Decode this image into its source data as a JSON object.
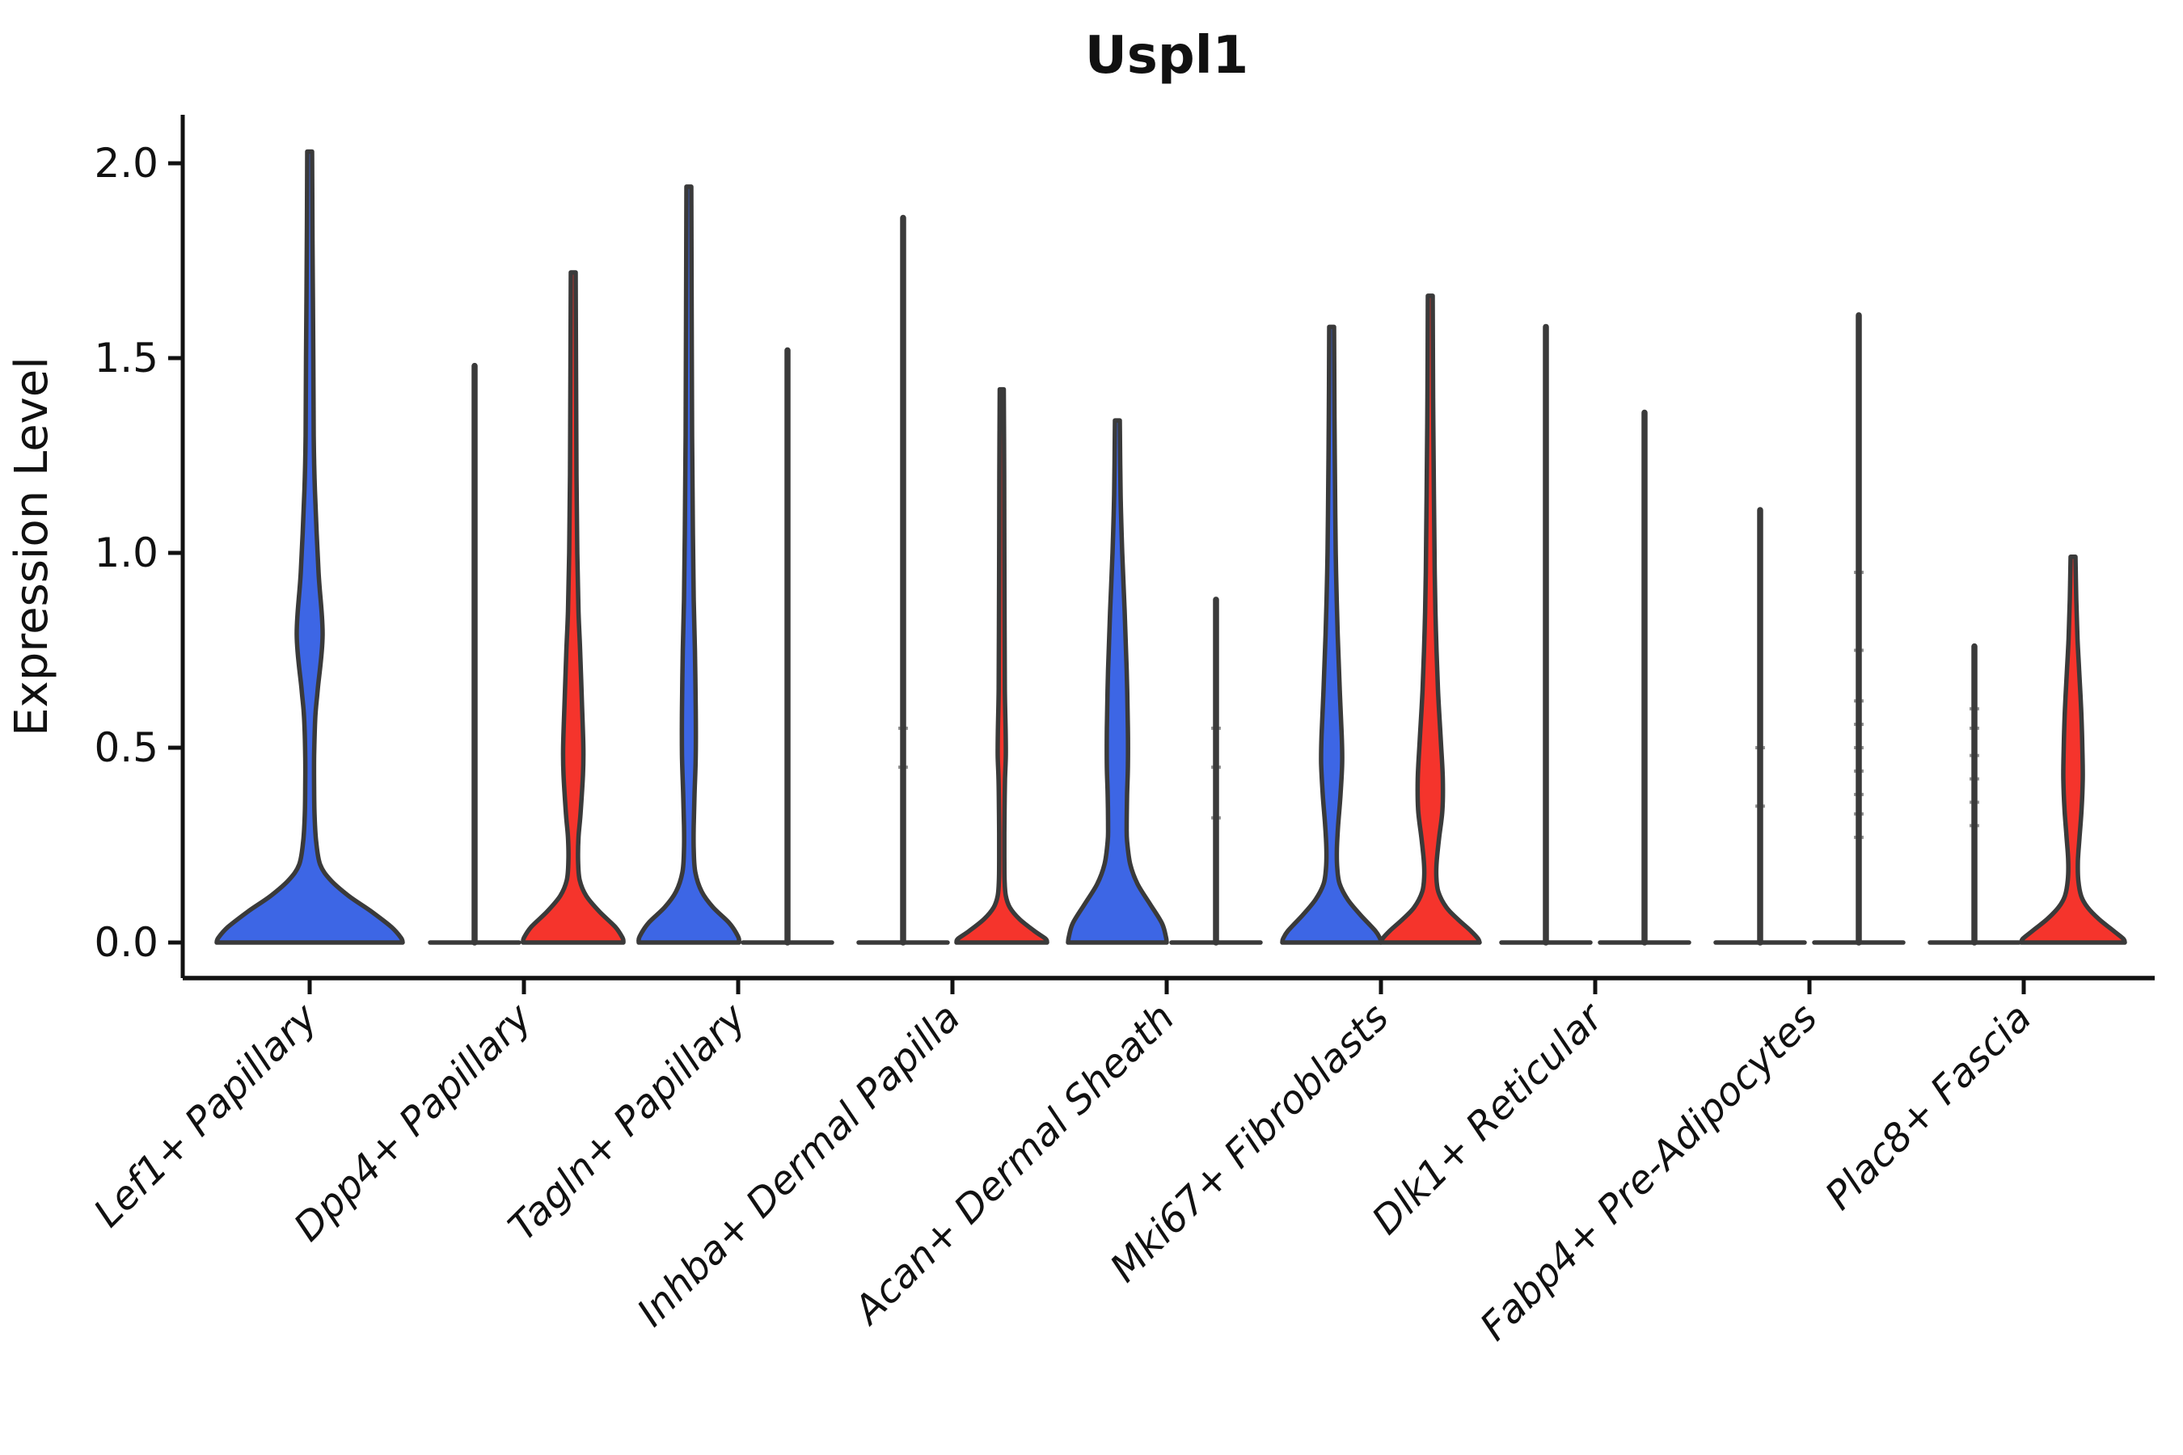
{
  "chart_data": {
    "type": "violin",
    "title": "Uspl1",
    "ylabel": "Expression Level",
    "xlabel": "",
    "yticks": [
      0.0,
      0.5,
      1.0,
      1.5,
      2.0
    ],
    "ylim": [
      -0.09,
      2.12
    ],
    "grid": false,
    "legend": "none",
    "categories": [
      "Lef1+ Papillary",
      "Dpp4+ Papillary",
      "Tagln+ Papillary",
      "Inhba+ Dermal Papilla",
      "Acan+ Dermal Sheath",
      "Mki67+ Fibroblasts",
      "Dlk1+ Reticular",
      "Fabp4+ Pre-Adipocytes",
      "Plac8+ Fascia"
    ],
    "colors": {
      "blue": "#3D66E5",
      "red": "#F5342C",
      "outline": "#3A3A3A",
      "axis": "#111111",
      "background": "#FFFFFF"
    },
    "groups": [
      {
        "category": "Lef1+ Papillary",
        "violins": [
          {
            "position": "center",
            "color": "blue",
            "kind": "shaped",
            "max_expression": 2.03,
            "profile": [
              [
                2.03,
                3
              ],
              [
                1.8,
                3.5
              ],
              [
                1.5,
                4.5
              ],
              [
                1.3,
                5
              ],
              [
                1.16,
                6.5
              ],
              [
                0.95,
                11
              ],
              [
                0.79,
                16
              ],
              [
                0.65,
                10
              ],
              [
                0.58,
                7
              ],
              [
                0.48,
                5.5
              ],
              [
                0.4,
                5.5
              ],
              [
                0.33,
                6
              ],
              [
                0.26,
                8
              ],
              [
                0.2,
                13
              ],
              [
                0.16,
                26
              ],
              [
                0.12,
                48
              ],
              [
                0.08,
                76
              ],
              [
                0.04,
                101
              ],
              [
                0.012,
                113
              ],
              [
                0,
                115
              ]
            ]
          }
        ]
      },
      {
        "category": "Dpp4+ Papillary",
        "violins": [
          {
            "position": "left",
            "color": "blue",
            "kind": "line",
            "max_expression": 1.48,
            "base_halfwidth": 55,
            "beads": []
          },
          {
            "position": "right",
            "color": "red",
            "kind": "shaped",
            "max_expression": 1.72,
            "profile": [
              [
                1.72,
                3
              ],
              [
                1.45,
                3.5
              ],
              [
                1.2,
                4
              ],
              [
                1.0,
                5
              ],
              [
                0.85,
                6.5
              ],
              [
                0.75,
                8.5
              ],
              [
                0.6,
                11
              ],
              [
                0.5,
                12.5
              ],
              [
                0.43,
                12
              ],
              [
                0.33,
                9
              ],
              [
                0.27,
                6.5
              ],
              [
                0.21,
                6
              ],
              [
                0.16,
                8
              ],
              [
                0.12,
                16
              ],
              [
                0.08,
                32
              ],
              [
                0.04,
                52
              ],
              [
                0.012,
                61
              ],
              [
                0,
                62
              ]
            ]
          }
        ]
      },
      {
        "category": "Tagln+ Papillary",
        "violins": [
          {
            "position": "left",
            "color": "blue",
            "kind": "shaped",
            "max_expression": 1.94,
            "profile": [
              [
                1.94,
                3
              ],
              [
                1.6,
                3.5
              ],
              [
                1.3,
                4
              ],
              [
                1.05,
                5
              ],
              [
                0.88,
                6
              ],
              [
                0.75,
                7.5
              ],
              [
                0.6,
                8.5
              ],
              [
                0.48,
                8.5
              ],
              [
                0.38,
                7
              ],
              [
                0.3,
                6
              ],
              [
                0.24,
                6
              ],
              [
                0.18,
                8
              ],
              [
                0.13,
                16
              ],
              [
                0.09,
                30
              ],
              [
                0.05,
                50
              ],
              [
                0.015,
                61
              ],
              [
                0,
                62
              ]
            ]
          },
          {
            "position": "right",
            "color": "red",
            "kind": "line",
            "max_expression": 1.52,
            "base_halfwidth": 55,
            "beads": []
          }
        ]
      },
      {
        "category": "Inhba+ Dermal Papilla",
        "violins": [
          {
            "position": "left",
            "color": "blue",
            "kind": "line",
            "max_expression": 1.86,
            "base_halfwidth": 55,
            "beads": [
              0.45,
              0.55
            ]
          },
          {
            "position": "right",
            "color": "red",
            "kind": "shaped",
            "max_expression": 1.42,
            "profile": [
              [
                1.42,
                2.5
              ],
              [
                1.2,
                3
              ],
              [
                1.0,
                3.2
              ],
              [
                0.8,
                3.5
              ],
              [
                0.65,
                3.8
              ],
              [
                0.54,
                4.8
              ],
              [
                0.48,
                5
              ],
              [
                0.42,
                4
              ],
              [
                0.35,
                3.5
              ],
              [
                0.28,
                3.2
              ],
              [
                0.22,
                3.2
              ],
              [
                0.16,
                3.5
              ],
              [
                0.12,
                5
              ],
              [
                0.09,
                10
              ],
              [
                0.06,
                22
              ],
              [
                0.03,
                40
              ],
              [
                0.01,
                54
              ],
              [
                0,
                56
              ]
            ]
          }
        ]
      },
      {
        "category": "Acan+ Dermal Sheath",
        "violins": [
          {
            "position": "left",
            "color": "blue",
            "kind": "shaped",
            "max_expression": 1.34,
            "profile": [
              [
                1.34,
                3
              ],
              [
                1.15,
                4
              ],
              [
                1.0,
                6
              ],
              [
                0.85,
                9
              ],
              [
                0.7,
                11.5
              ],
              [
                0.55,
                13
              ],
              [
                0.45,
                13
              ],
              [
                0.38,
                12
              ],
              [
                0.3,
                11.5
              ],
              [
                0.26,
                12
              ],
              [
                0.2,
                16
              ],
              [
                0.15,
                25
              ],
              [
                0.1,
                40
              ],
              [
                0.05,
                55
              ],
              [
                0.015,
                60
              ],
              [
                0,
                61
              ]
            ]
          },
          {
            "position": "right",
            "color": "red",
            "kind": "line",
            "max_expression": 0.88,
            "base_halfwidth": 55,
            "beads": [
              0.32,
              0.45,
              0.55
            ]
          }
        ]
      },
      {
        "category": "Mki67+ Fibroblasts",
        "violins": [
          {
            "position": "left",
            "color": "blue",
            "kind": "shaped",
            "max_expression": 1.58,
            "profile": [
              [
                1.58,
                3
              ],
              [
                1.35,
                3.5
              ],
              [
                1.1,
                4.5
              ],
              [
                0.95,
                5.5
              ],
              [
                0.79,
                7.5
              ],
              [
                0.65,
                10
              ],
              [
                0.53,
                12.5
              ],
              [
                0.46,
                13
              ],
              [
                0.38,
                11
              ],
              [
                0.3,
                8
              ],
              [
                0.24,
                6.5
              ],
              [
                0.19,
                7
              ],
              [
                0.15,
                10
              ],
              [
                0.11,
                20
              ],
              [
                0.07,
                36
              ],
              [
                0.03,
                54
              ],
              [
                0.01,
                60
              ],
              [
                0,
                61
              ]
            ]
          },
          {
            "position": "right",
            "color": "red",
            "kind": "shaped",
            "max_expression": 1.66,
            "profile": [
              [
                1.66,
                3
              ],
              [
                1.4,
                3.5
              ],
              [
                1.15,
                4.5
              ],
              [
                0.95,
                5.5
              ],
              [
                0.8,
                7
              ],
              [
                0.65,
                9.5
              ],
              [
                0.52,
                13
              ],
              [
                0.42,
                15.5
              ],
              [
                0.34,
                15
              ],
              [
                0.27,
                11
              ],
              [
                0.21,
                8
              ],
              [
                0.17,
                7.5
              ],
              [
                0.13,
                10
              ],
              [
                0.09,
                20
              ],
              [
                0.06,
                34
              ],
              [
                0.03,
                50
              ],
              [
                0.01,
                59
              ],
              [
                0,
                61
              ]
            ]
          }
        ]
      },
      {
        "category": "Dlk1+ Reticular",
        "violins": [
          {
            "position": "left",
            "color": "blue",
            "kind": "line",
            "max_expression": 1.58,
            "base_halfwidth": 55,
            "beads": []
          },
          {
            "position": "right",
            "color": "red",
            "kind": "line",
            "max_expression": 1.36,
            "base_halfwidth": 55,
            "beads": []
          }
        ]
      },
      {
        "category": "Fabp4+ Pre-Adipocytes",
        "violins": [
          {
            "position": "left",
            "color": "blue",
            "kind": "line",
            "max_expression": 1.11,
            "base_halfwidth": 55,
            "beads": [
              0.35,
              0.5
            ]
          },
          {
            "position": "right",
            "color": "red",
            "kind": "line",
            "max_expression": 1.61,
            "base_halfwidth": 55,
            "beads": [
              0.27,
              0.33,
              0.38,
              0.44,
              0.5,
              0.56,
              0.62,
              0.75,
              0.95
            ]
          }
        ]
      },
      {
        "category": "Plac8+ Fascia",
        "violins": [
          {
            "position": "left",
            "color": "blue",
            "kind": "line",
            "max_expression": 0.76,
            "base_halfwidth": 55,
            "beads": [
              0.3,
              0.36,
              0.42,
              0.48,
              0.55,
              0.6
            ]
          },
          {
            "position": "right",
            "color": "red",
            "kind": "shaped",
            "max_expression": 0.99,
            "profile": [
              [
                0.99,
                3
              ],
              [
                0.88,
                4
              ],
              [
                0.78,
                5.5
              ],
              [
                0.7,
                7.5
              ],
              [
                0.6,
                10
              ],
              [
                0.5,
                11.5
              ],
              [
                0.42,
                12
              ],
              [
                0.34,
                10.5
              ],
              [
                0.27,
                8
              ],
              [
                0.21,
                6
              ],
              [
                0.16,
                6.5
              ],
              [
                0.12,
                10
              ],
              [
                0.09,
                18
              ],
              [
                0.06,
                32
              ],
              [
                0.03,
                50
              ],
              [
                0.01,
                62
              ],
              [
                0,
                64
              ]
            ]
          }
        ]
      }
    ]
  }
}
